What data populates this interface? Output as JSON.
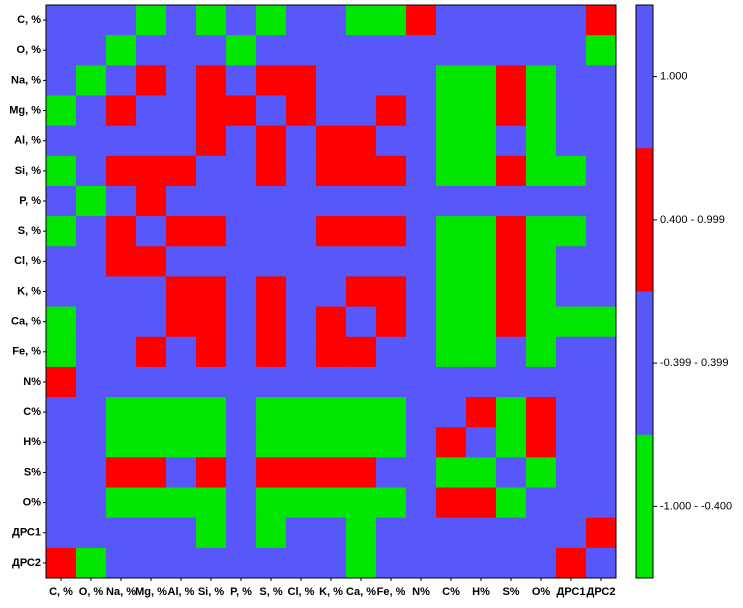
{
  "chart_data": {
    "type": "heatmap",
    "categories": [
      "C, %",
      "O, %",
      "Na, %",
      "Mg, %",
      "Al, %",
      "Si, %",
      "P, %",
      "S, %",
      "Cl, %",
      "K, %",
      "Ca, %",
      "Fe, %",
      "N%",
      "C%",
      "H%",
      "S%",
      "O%",
      "ДРС1",
      "ДРС2"
    ],
    "classes": [
      {
        "label": "1.000",
        "color": "#5757fa"
      },
      {
        "label": "0.400 - 0.999",
        "color": "#ff0000"
      },
      {
        "label": "-0.399 - 0.399",
        "color": "#5757fa"
      },
      {
        "label": "-1.000 - -0.400",
        "color": "#00e600"
      }
    ],
    "z": [
      [
        0,
        2,
        2,
        3,
        2,
        3,
        2,
        3,
        2,
        2,
        3,
        3,
        1,
        2,
        2,
        2,
        2,
        2,
        1
      ],
      [
        2,
        0,
        3,
        2,
        2,
        2,
        3,
        2,
        2,
        2,
        2,
        2,
        2,
        2,
        2,
        2,
        2,
        2,
        3
      ],
      [
        2,
        3,
        0,
        1,
        2,
        1,
        2,
        1,
        1,
        2,
        2,
        2,
        2,
        3,
        3,
        1,
        3,
        2,
        2
      ],
      [
        3,
        2,
        1,
        0,
        2,
        1,
        1,
        2,
        1,
        2,
        2,
        1,
        2,
        3,
        3,
        1,
        3,
        2,
        2
      ],
      [
        2,
        2,
        2,
        2,
        0,
        1,
        2,
        1,
        2,
        1,
        1,
        2,
        2,
        3,
        3,
        2,
        3,
        2,
        2
      ],
      [
        3,
        2,
        1,
        1,
        1,
        0,
        2,
        1,
        2,
        1,
        1,
        1,
        2,
        3,
        3,
        1,
        3,
        3,
        2
      ],
      [
        2,
        3,
        2,
        1,
        2,
        2,
        0,
        2,
        2,
        2,
        2,
        2,
        2,
        2,
        2,
        2,
        2,
        2,
        2
      ],
      [
        3,
        2,
        1,
        2,
        1,
        1,
        2,
        0,
        2,
        1,
        1,
        1,
        2,
        3,
        3,
        1,
        3,
        3,
        2
      ],
      [
        2,
        2,
        1,
        1,
        2,
        2,
        2,
        2,
        0,
        2,
        2,
        2,
        2,
        3,
        3,
        1,
        3,
        2,
        2
      ],
      [
        2,
        2,
        2,
        2,
        1,
        1,
        2,
        1,
        2,
        0,
        1,
        1,
        2,
        3,
        3,
        1,
        3,
        2,
        2
      ],
      [
        3,
        2,
        2,
        2,
        1,
        1,
        2,
        1,
        2,
        1,
        0,
        1,
        2,
        3,
        3,
        1,
        3,
        3,
        3
      ],
      [
        3,
        2,
        2,
        1,
        2,
        1,
        2,
        1,
        2,
        1,
        1,
        0,
        2,
        3,
        3,
        2,
        3,
        2,
        2
      ],
      [
        1,
        2,
        2,
        2,
        2,
        2,
        2,
        2,
        2,
        2,
        2,
        2,
        0,
        2,
        2,
        2,
        2,
        2,
        2
      ],
      [
        2,
        2,
        3,
        3,
        3,
        3,
        2,
        3,
        3,
        3,
        3,
        3,
        2,
        0,
        1,
        3,
        1,
        2,
        2
      ],
      [
        2,
        2,
        3,
        3,
        3,
        3,
        2,
        3,
        3,
        3,
        3,
        3,
        2,
        1,
        0,
        3,
        1,
        2,
        2
      ],
      [
        2,
        2,
        1,
        1,
        2,
        1,
        2,
        1,
        1,
        1,
        1,
        2,
        2,
        3,
        3,
        0,
        3,
        2,
        2
      ],
      [
        2,
        2,
        3,
        3,
        3,
        3,
        2,
        3,
        3,
        3,
        3,
        3,
        2,
        1,
        1,
        3,
        0,
        2,
        2
      ],
      [
        2,
        2,
        2,
        2,
        2,
        3,
        2,
        3,
        2,
        2,
        3,
        2,
        2,
        2,
        2,
        2,
        2,
        0,
        1
      ],
      [
        1,
        3,
        2,
        2,
        2,
        2,
        2,
        2,
        2,
        2,
        3,
        2,
        2,
        2,
        2,
        2,
        2,
        1,
        0
      ]
    ]
  }
}
